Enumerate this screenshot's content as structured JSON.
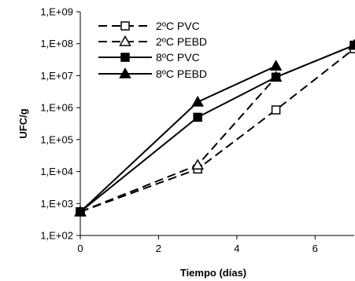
{
  "chart_data": {
    "type": "line",
    "xlabel": "Tiempo (días)",
    "ylabel": "UFC/g",
    "xlim": [
      0,
      7
    ],
    "x_ticks": [
      "0",
      "2",
      "4",
      "6"
    ],
    "x_tick_values": [
      0,
      2,
      4,
      6
    ],
    "y_scale": "log",
    "ylim": [
      100,
      1000000000
    ],
    "y_ticks": [
      "1,E+02",
      "1,E+03",
      "1,E+04",
      "1,E+05",
      "1,E+06",
      "1,E+07",
      "1,E+08",
      "1,E+09"
    ],
    "y_tick_values": [
      100,
      1000,
      10000,
      100000,
      1000000,
      10000000,
      100000000,
      1000000000
    ],
    "grid": false,
    "legend_position": "top-left",
    "series": [
      {
        "name": "2ºC PVC",
        "line": "dashed",
        "marker": "square-open",
        "x": [
          0,
          3,
          5,
          7
        ],
        "y": [
          550,
          12000,
          850000,
          70000000
        ]
      },
      {
        "name": "2ºC PEBD",
        "line": "dashed",
        "marker": "triangle-open",
        "x": [
          0,
          3,
          5,
          7
        ],
        "y": [
          550,
          16000,
          9000000,
          90000000
        ]
      },
      {
        "name": "8ºC PVC",
        "line": "solid",
        "marker": "square-filled",
        "x": [
          0,
          3,
          5,
          7
        ],
        "y": [
          550,
          500000,
          9000000,
          90000000
        ]
      },
      {
        "name": "8ºC PEBD",
        "line": "solid",
        "marker": "triangle-filled",
        "x": [
          0,
          3,
          5
        ],
        "y": [
          550,
          1500000,
          20000000
        ]
      }
    ]
  }
}
